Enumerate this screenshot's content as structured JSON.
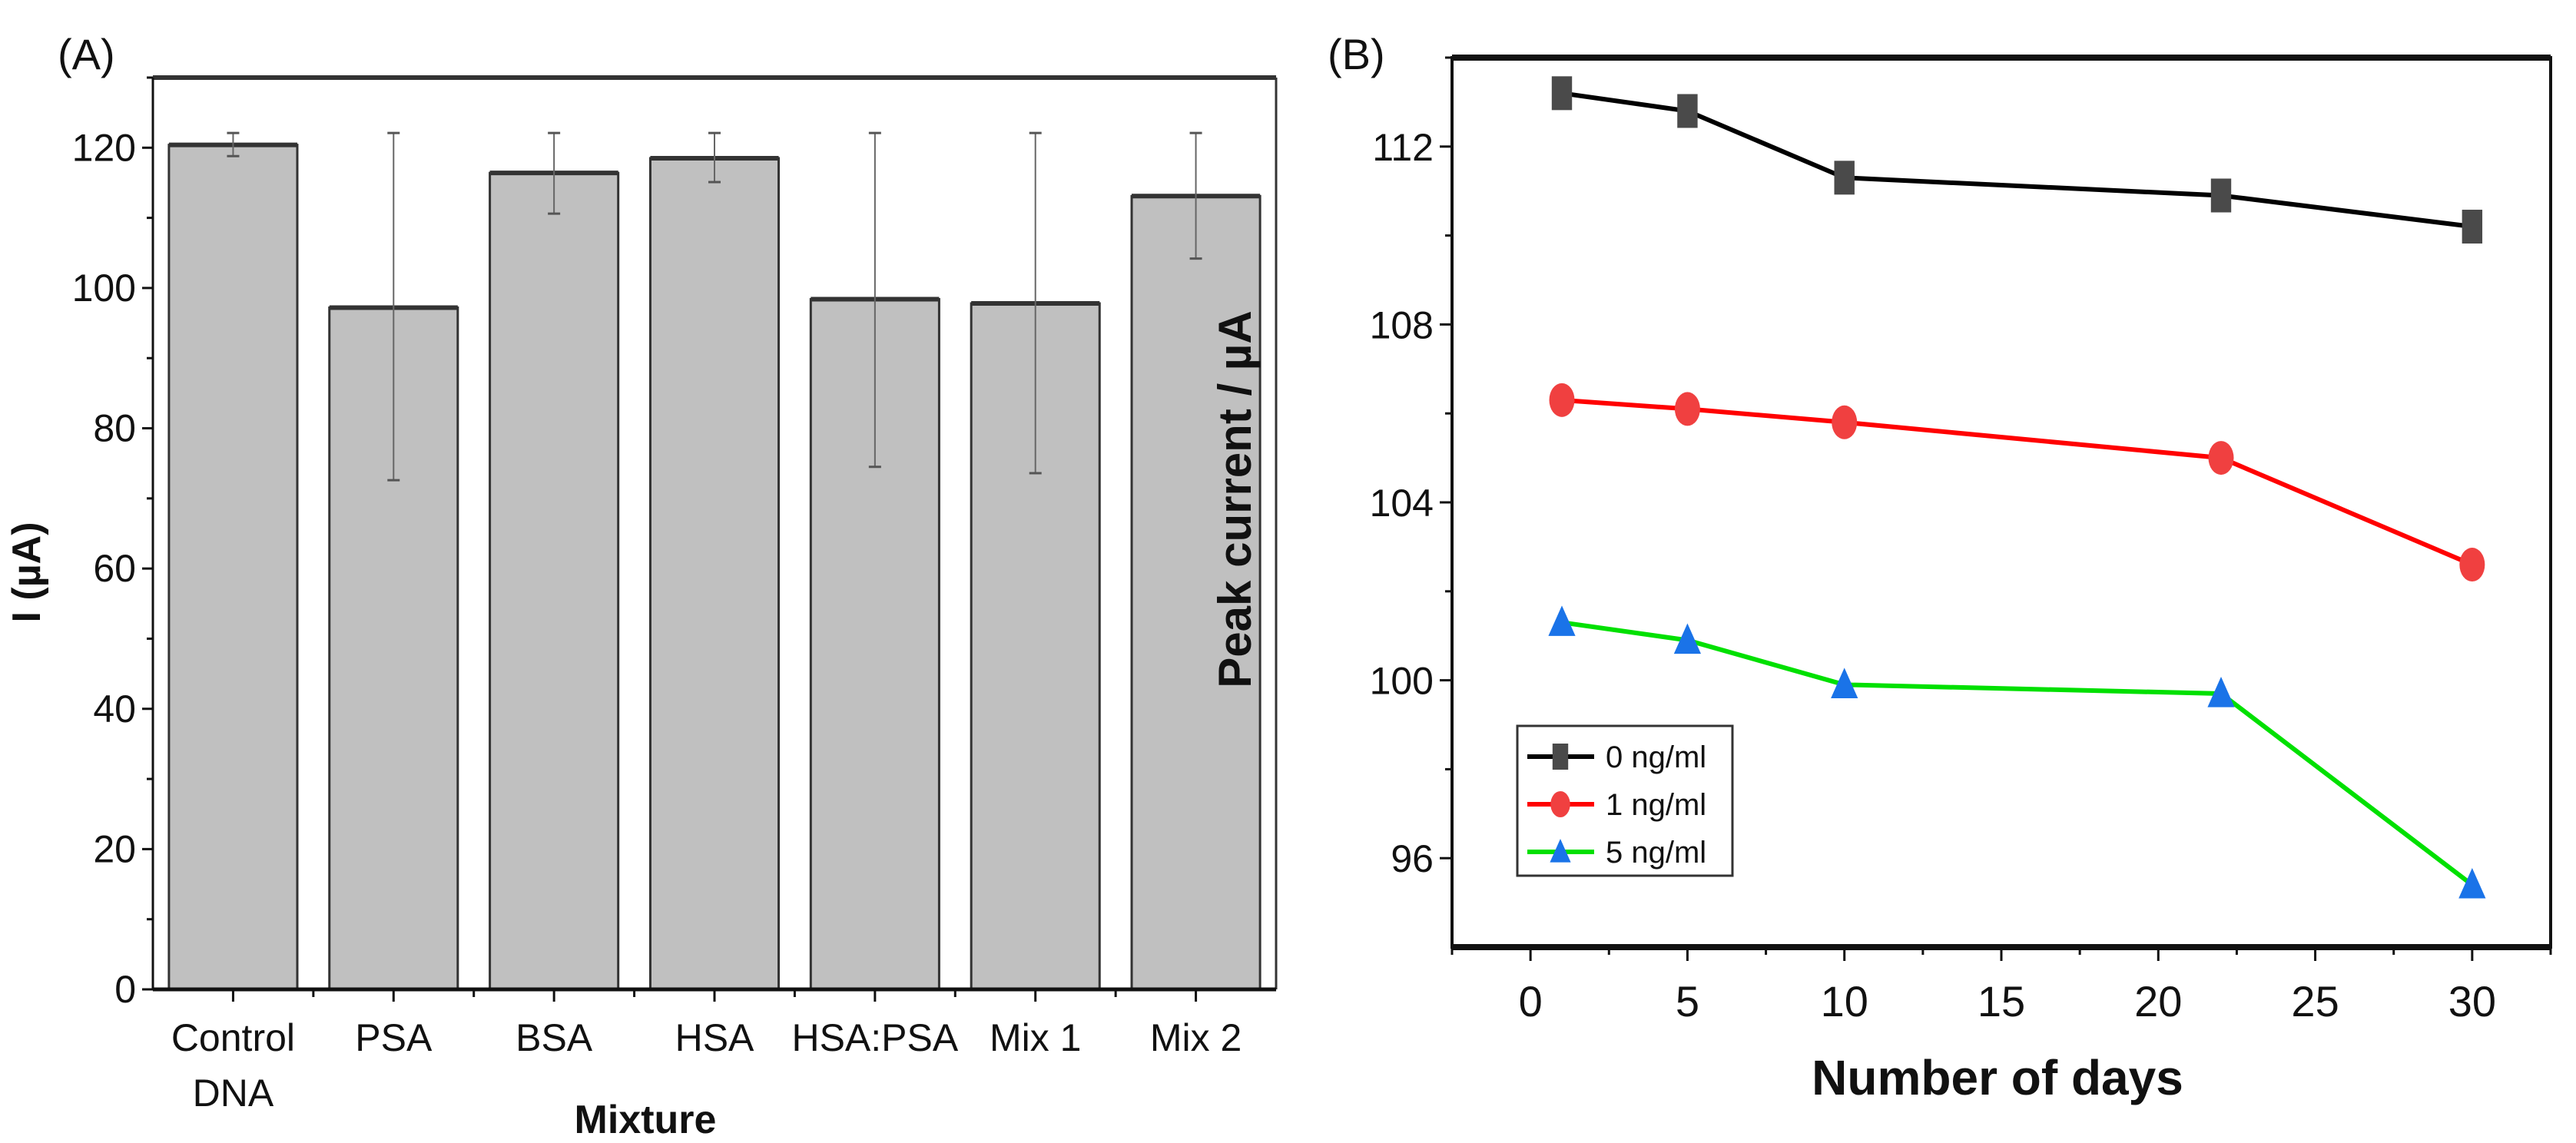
{
  "chart_data": [
    {
      "type": "bar",
      "panel_label": "(A)",
      "title": "",
      "xlabel": "Mixture",
      "ylabel": "I (µA)",
      "ylim": [
        0,
        130
      ],
      "yticks": [
        0,
        20,
        40,
        60,
        80,
        100,
        120
      ],
      "categories": [
        "Control DNA",
        "PSA",
        "BSA",
        "HSA",
        "HSA:PSA",
        "Mix 1",
        "Mix 2"
      ],
      "values": [
        120.4,
        97.2,
        116.4,
        118.5,
        98.4,
        97.8,
        113.1
      ],
      "error_low": [
        118.8,
        72.6,
        110.6,
        115.1,
        74.5,
        73.6,
        104.2
      ],
      "error_high": [
        122.1,
        122.1,
        122.1,
        122.1,
        122.1,
        122.1,
        122.1
      ],
      "bar_color": "#c0c0c0",
      "grid": false
    },
    {
      "type": "line",
      "panel_label": "(B)",
      "title": "",
      "xlabel": "Number of days",
      "ylabel": "Peak current / µA",
      "xlim": [
        -2.5,
        32.5
      ],
      "ylim": [
        94,
        114
      ],
      "xticks": [
        0,
        5,
        10,
        15,
        20,
        25,
        30
      ],
      "yticks": [
        96,
        100,
        104,
        108,
        112
      ],
      "x": [
        1,
        5,
        10,
        22,
        30
      ],
      "series": [
        {
          "name": "0 ng/ml",
          "values": [
            113.2,
            112.8,
            111.3,
            110.9,
            110.2
          ],
          "color": "#000000",
          "marker_color": "#4a4a4a",
          "marker": "square"
        },
        {
          "name": "1 ng/ml",
          "values": [
            106.3,
            106.1,
            105.8,
            105.0,
            102.6
          ],
          "color": "#ff0000",
          "marker_color": "#f04040",
          "marker": "circle"
        },
        {
          "name": "5 ng/ml",
          "values": [
            101.3,
            100.9,
            99.9,
            99.7,
            95.4
          ],
          "color": "#00e000",
          "marker_color": "#1a73e8",
          "marker": "triangle"
        }
      ],
      "legend_position": "lower-left",
      "grid": false
    }
  ]
}
